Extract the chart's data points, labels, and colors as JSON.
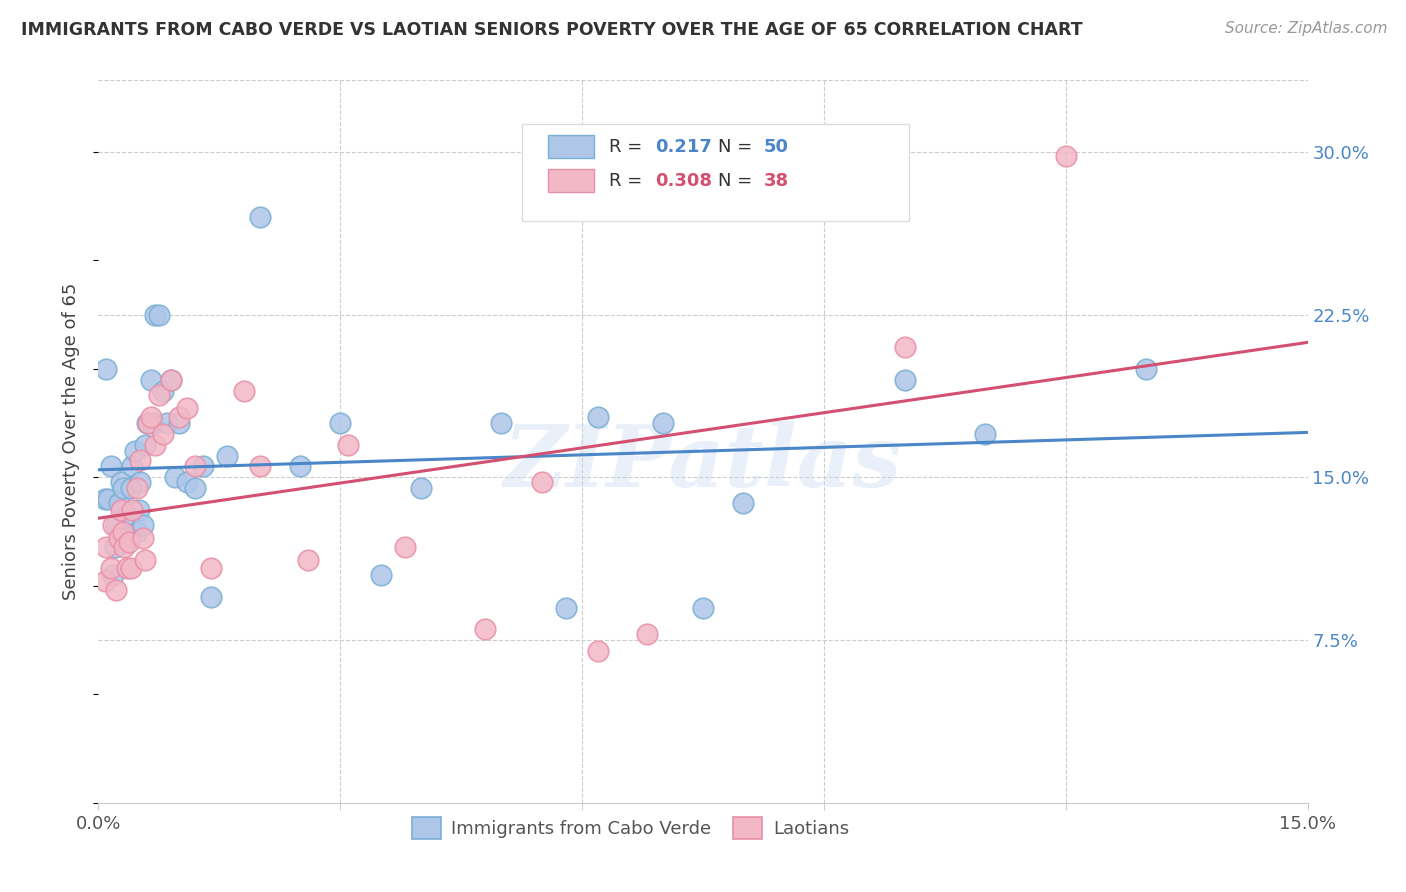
{
  "title": "IMMIGRANTS FROM CABO VERDE VS LAOTIAN SENIORS POVERTY OVER THE AGE OF 65 CORRELATION CHART",
  "source": "Source: ZipAtlas.com",
  "ylabel": "Seniors Poverty Over the Age of 65",
  "xlim": [
    0.0,
    0.15
  ],
  "ylim": [
    0.0,
    0.333
  ],
  "grid_color": "#cccccc",
  "background_color": "#ffffff",
  "watermark": "ZIPatlas",
  "cabo_verde_color": "#aec6e8",
  "cabo_verde_edge": "#7aafd4",
  "laotian_color": "#f2b8c6",
  "laotian_edge": "#e890a8",
  "blue_line_color": "#4a86c8",
  "pink_line_color": "#d45070",
  "legend_text_dark": "#333333",
  "legend_text_blue": "#4a86c8",
  "cabo_verde_x": [
    0.0008,
    0.001,
    0.0012,
    0.0015,
    0.0018,
    0.002,
    0.0022,
    0.0025,
    0.0028,
    0.003,
    0.0032,
    0.0035,
    0.0038,
    0.004,
    0.0042,
    0.0045,
    0.0048,
    0.005,
    0.0052,
    0.0055,
    0.0058,
    0.006,
    0.0065,
    0.0068,
    0.007,
    0.0075,
    0.008,
    0.0085,
    0.009,
    0.0095,
    0.01,
    0.011,
    0.012,
    0.013,
    0.014,
    0.016,
    0.02,
    0.025,
    0.03,
    0.035,
    0.04,
    0.05,
    0.058,
    0.062,
    0.07,
    0.075,
    0.08,
    0.1,
    0.11,
    0.13
  ],
  "cabo_verde_y": [
    0.14,
    0.2,
    0.14,
    0.155,
    0.105,
    0.118,
    0.128,
    0.138,
    0.148,
    0.145,
    0.122,
    0.132,
    0.122,
    0.145,
    0.155,
    0.162,
    0.125,
    0.135,
    0.148,
    0.128,
    0.165,
    0.175,
    0.195,
    0.175,
    0.225,
    0.225,
    0.19,
    0.175,
    0.195,
    0.15,
    0.175,
    0.148,
    0.145,
    0.155,
    0.095,
    0.16,
    0.27,
    0.155,
    0.175,
    0.105,
    0.145,
    0.175,
    0.09,
    0.178,
    0.175,
    0.09,
    0.138,
    0.195,
    0.17,
    0.2
  ],
  "laotian_x": [
    0.0008,
    0.001,
    0.0015,
    0.0018,
    0.0022,
    0.0025,
    0.0028,
    0.003,
    0.0032,
    0.0035,
    0.0038,
    0.004,
    0.0042,
    0.0048,
    0.0052,
    0.0055,
    0.0058,
    0.0062,
    0.0065,
    0.007,
    0.0075,
    0.008,
    0.009,
    0.01,
    0.011,
    0.012,
    0.014,
    0.018,
    0.02,
    0.026,
    0.031,
    0.038,
    0.048,
    0.055,
    0.062,
    0.068,
    0.1,
    0.12
  ],
  "laotian_y": [
    0.102,
    0.118,
    0.108,
    0.128,
    0.098,
    0.122,
    0.135,
    0.125,
    0.118,
    0.108,
    0.12,
    0.108,
    0.135,
    0.145,
    0.158,
    0.122,
    0.112,
    0.175,
    0.178,
    0.165,
    0.188,
    0.17,
    0.195,
    0.178,
    0.182,
    0.155,
    0.108,
    0.19,
    0.155,
    0.112,
    0.165,
    0.118,
    0.08,
    0.148,
    0.07,
    0.078,
    0.21,
    0.298
  ]
}
